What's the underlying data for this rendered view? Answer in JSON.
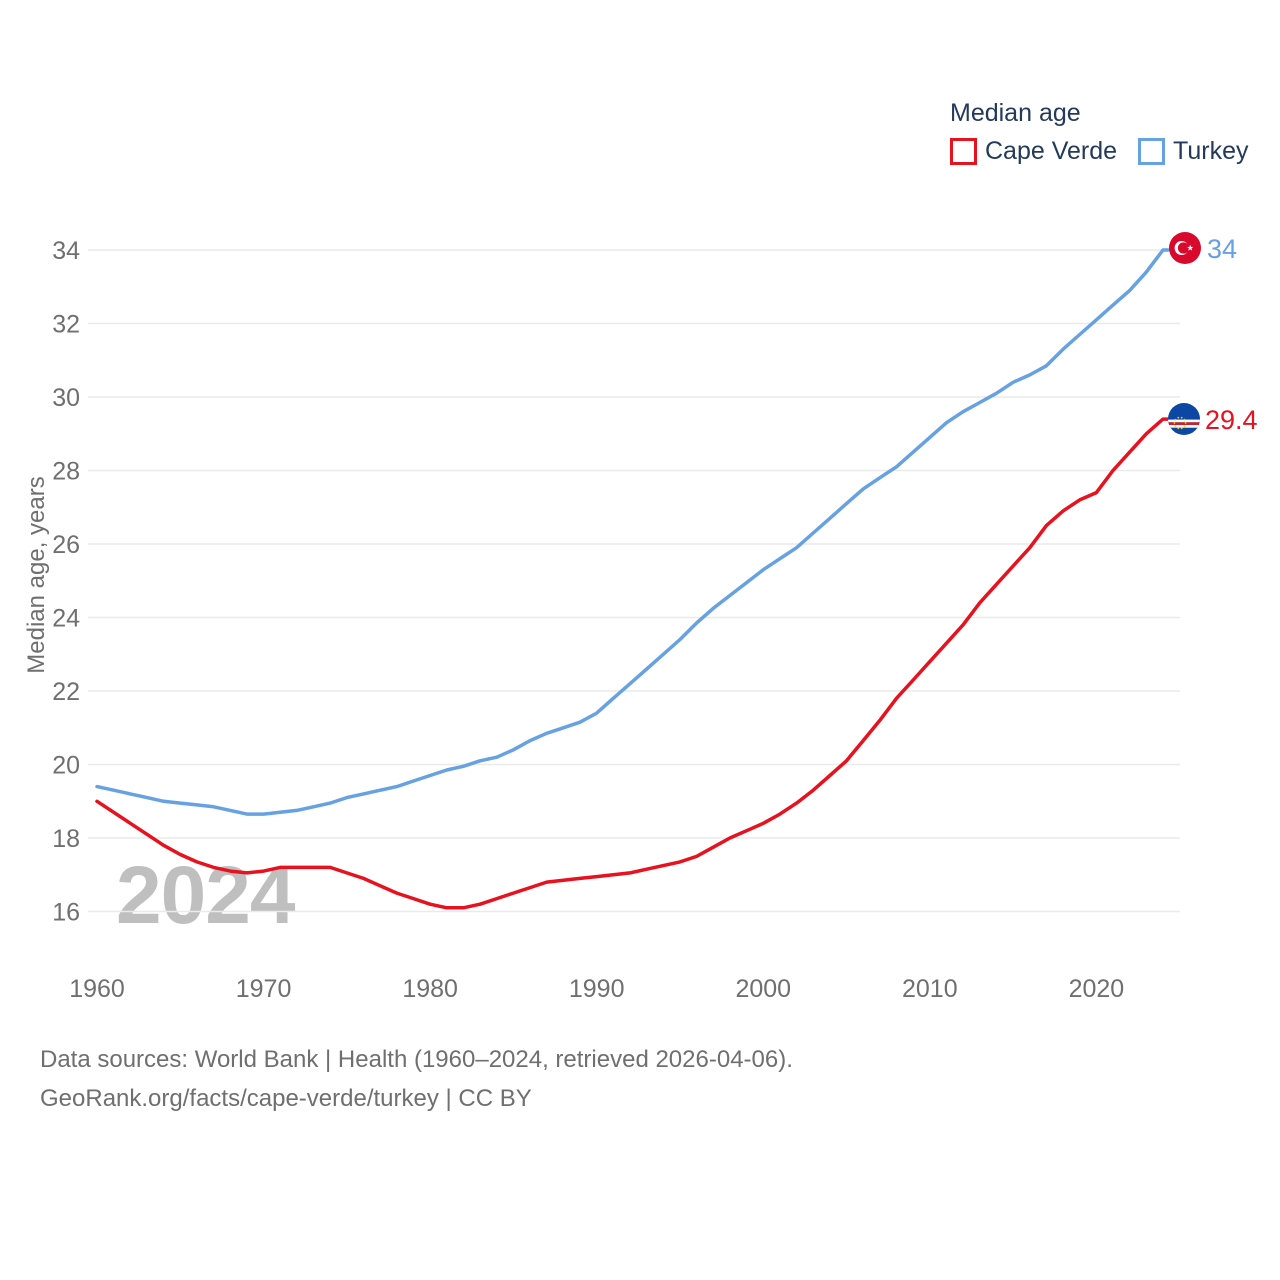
{
  "watermark": "2024",
  "legend": {
    "title": "Median age",
    "items": [
      {
        "label": "Cape Verde",
        "color": "#e8111e"
      },
      {
        "label": "Turkey",
        "color": "#66a1e2"
      }
    ]
  },
  "axes": {
    "y_title": "Median age, years",
    "y_ticks": [
      16,
      18,
      20,
      22,
      24,
      26,
      28,
      30,
      32,
      34
    ],
    "x_ticks": [
      1960,
      1970,
      1980,
      1990,
      2000,
      2010,
      2020
    ]
  },
  "end_labels": {
    "turkey": "34",
    "cape_verde": "29.4"
  },
  "source": {
    "line1": "Data sources: World Bank | Health (1960–2024, retrieved 2026-04-06).",
    "line2": "GeoRank.org/facts/cape-verde/turkey | CC BY"
  },
  "colors": {
    "cape_verde_line": "#e8111e",
    "turkey_line": "#66a1e2",
    "heading_text": "#24395b",
    "axis_text": "#6f6f6f",
    "grid": "#eaeaea",
    "watermark": "#bfbfbf",
    "turkey_flag_red": "#d9092e",
    "cape_verde_flag_blue": "#0c47a4",
    "cape_verde_flag_red": "#cf2027",
    "cape_verde_flag_yellow": "#f7d116"
  },
  "chart_data": {
    "type": "line",
    "title": "Median age",
    "xlabel": "",
    "ylabel": "Median age, years",
    "ylim": [
      16,
      34
    ],
    "x_range": [
      1960,
      2024
    ],
    "x_step": 1,
    "grid": "horizontal",
    "legend_position": "top-right",
    "series": [
      {
        "name": "Cape Verde",
        "color": "#e8111e",
        "end_value": 29.4,
        "values": [
          19.0,
          18.7,
          18.4,
          18.1,
          17.8,
          17.55,
          17.35,
          17.2,
          17.1,
          17.05,
          17.1,
          17.2,
          17.2,
          17.2,
          17.2,
          17.05,
          16.9,
          16.7,
          16.5,
          16.35,
          16.2,
          16.1,
          16.1,
          16.2,
          16.35,
          16.5,
          16.65,
          16.8,
          16.85,
          16.9,
          16.95,
          17.0,
          17.05,
          17.15,
          17.25,
          17.35,
          17.5,
          17.75,
          18.0,
          18.2,
          18.4,
          18.65,
          18.95,
          19.3,
          19.7,
          20.1,
          20.65,
          21.2,
          21.8,
          22.3,
          22.8,
          23.3,
          23.8,
          24.4,
          24.9,
          25.4,
          25.9,
          26.5,
          26.9,
          27.2,
          27.4,
          28.0,
          28.5,
          29.0,
          29.4
        ]
      },
      {
        "name": "Turkey",
        "color": "#66a1e2",
        "end_value": 34,
        "values": [
          19.4,
          19.3,
          19.2,
          19.1,
          19.0,
          18.95,
          18.9,
          18.85,
          18.75,
          18.65,
          18.65,
          18.7,
          18.75,
          18.85,
          18.95,
          19.1,
          19.2,
          19.3,
          19.4,
          19.55,
          19.7,
          19.85,
          19.95,
          20.1,
          20.2,
          20.4,
          20.65,
          20.85,
          21.0,
          21.15,
          21.4,
          21.8,
          22.2,
          22.6,
          23.0,
          23.4,
          23.85,
          24.25,
          24.6,
          24.95,
          25.3,
          25.6,
          25.9,
          26.3,
          26.7,
          27.1,
          27.5,
          27.8,
          28.1,
          28.5,
          28.9,
          29.3,
          29.6,
          29.85,
          30.1,
          30.4,
          30.6,
          30.85,
          31.3,
          31.7,
          32.1,
          32.5,
          32.9,
          33.4,
          34.0
        ]
      }
    ]
  }
}
